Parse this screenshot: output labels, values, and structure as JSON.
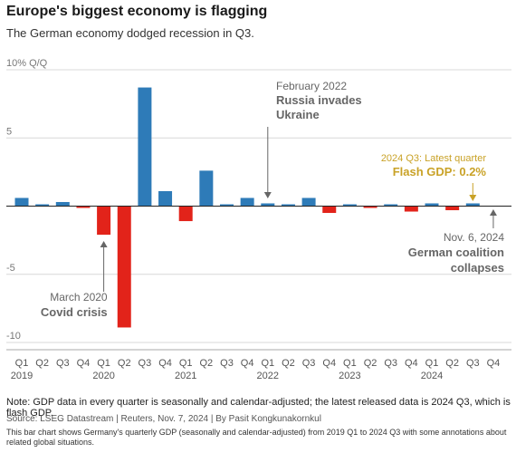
{
  "header": {
    "title": "Europe's biggest economy is flagging",
    "subtitle": "The German economy dodged recession in Q3."
  },
  "footer": {
    "note": "Note: GDP data in every quarter is seasonally and calendar-adjusted; the latest released data is 2024 Q3, which is flash GDP.",
    "source": "Source: LSEG Datastream | Reuters, Nov. 7, 2024 | By Pasit Kongkunakornkul",
    "description": "This bar chart shows Germany's quarterly GDP (seasonally and calendar-adjusted) from 2019 Q1 to 2024 Q3 with some annotations about related global situations."
  },
  "colors": {
    "positive": "#2e7bb8",
    "negative": "#e2231a",
    "annotation": "#666666",
    "highlight": "#c9a227",
    "grid": "#d8d8d8"
  },
  "chart_data": {
    "type": "bar",
    "ylim": [
      -10,
      10
    ],
    "y_ticks": [
      {
        "value": 10,
        "label": "10% Q/Q"
      },
      {
        "value": 5,
        "label": "5"
      },
      {
        "value": -5,
        "label": "-5"
      },
      {
        "value": -10,
        "label": "-10"
      }
    ],
    "categories": [
      "Q1",
      "Q2",
      "Q3",
      "Q4",
      "Q1",
      "Q2",
      "Q3",
      "Q4",
      "Q1",
      "Q2",
      "Q3",
      "Q4",
      "Q1",
      "Q2",
      "Q3",
      "Q4",
      "Q1",
      "Q2",
      "Q3",
      "Q4",
      "Q1",
      "Q2",
      "Q3",
      "Q4"
    ],
    "years": [
      {
        "label": "2019",
        "start_index": 0
      },
      {
        "label": "2020",
        "start_index": 4
      },
      {
        "label": "2021",
        "start_index": 8
      },
      {
        "label": "2022",
        "start_index": 12
      },
      {
        "label": "2023",
        "start_index": 16
      },
      {
        "label": "2024",
        "start_index": 20
      }
    ],
    "values": [
      0.6,
      0.0,
      0.3,
      -0.1,
      -2.1,
      -8.9,
      8.7,
      1.1,
      -1.1,
      2.6,
      0.0,
      0.6,
      0.2,
      0.0,
      0.6,
      -0.5,
      0.1,
      -0.1,
      0.1,
      -0.4,
      0.2,
      -0.3,
      0.2,
      null
    ],
    "annotations": [
      {
        "index": 4,
        "line1": "March 2020",
        "line2": "Covid crisis",
        "position": "below",
        "style": "grey"
      },
      {
        "index": 12,
        "line1": "February 2022",
        "line2": "Russia invades",
        "line3": "Ukraine",
        "position": "above",
        "style": "grey"
      },
      {
        "index": 22,
        "line1": "2024 Q3: Latest quarter",
        "line2": "Flash GDP: 0.2%",
        "position": "above",
        "style": "highlight"
      },
      {
        "index": 23,
        "line1": "Nov. 6, 2024",
        "line2": "German coalition",
        "line3": "collapses",
        "position": "below",
        "style": "grey"
      }
    ]
  }
}
